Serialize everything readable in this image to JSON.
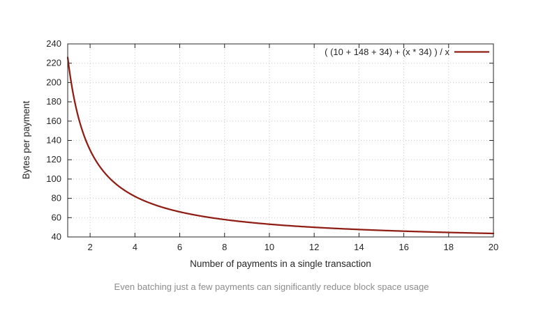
{
  "caption": "Even batching just a few payments can significantly reduce block space usage",
  "colors": {
    "line": "#8f1d14",
    "grid": "#c8c8c8",
    "border": "#262626",
    "text": "#262626",
    "caption": "#8c8c8c",
    "background": "#ffffff"
  },
  "chart_data": {
    "type": "line",
    "title": "",
    "xlabel": "Number of payments in a single transaction",
    "ylabel": "Bytes per payment",
    "xlim": [
      1,
      20
    ],
    "ylim": [
      40,
      240
    ],
    "xticks": [
      2,
      4,
      6,
      8,
      10,
      12,
      14,
      16,
      18,
      20
    ],
    "yticks": [
      40,
      60,
      80,
      100,
      120,
      140,
      160,
      180,
      200,
      220,
      240
    ],
    "grid": true,
    "legend_position": "top-right-inside",
    "series": [
      {
        "name": "( (10 + 148 + 34) + (x * 34) ) / x",
        "formula": {
          "fixed_bytes": 192,
          "per_payment_bytes": 34
        },
        "color": "#8f1d14",
        "sample_points": {
          "x": [
            1,
            2,
            3,
            4,
            5,
            6,
            8,
            10,
            12,
            14,
            16,
            18,
            20
          ],
          "y": [
            226,
            130,
            98,
            82,
            72.4,
            66,
            58,
            53.2,
            50,
            47.7,
            46,
            44.7,
            43.6
          ]
        }
      }
    ]
  }
}
